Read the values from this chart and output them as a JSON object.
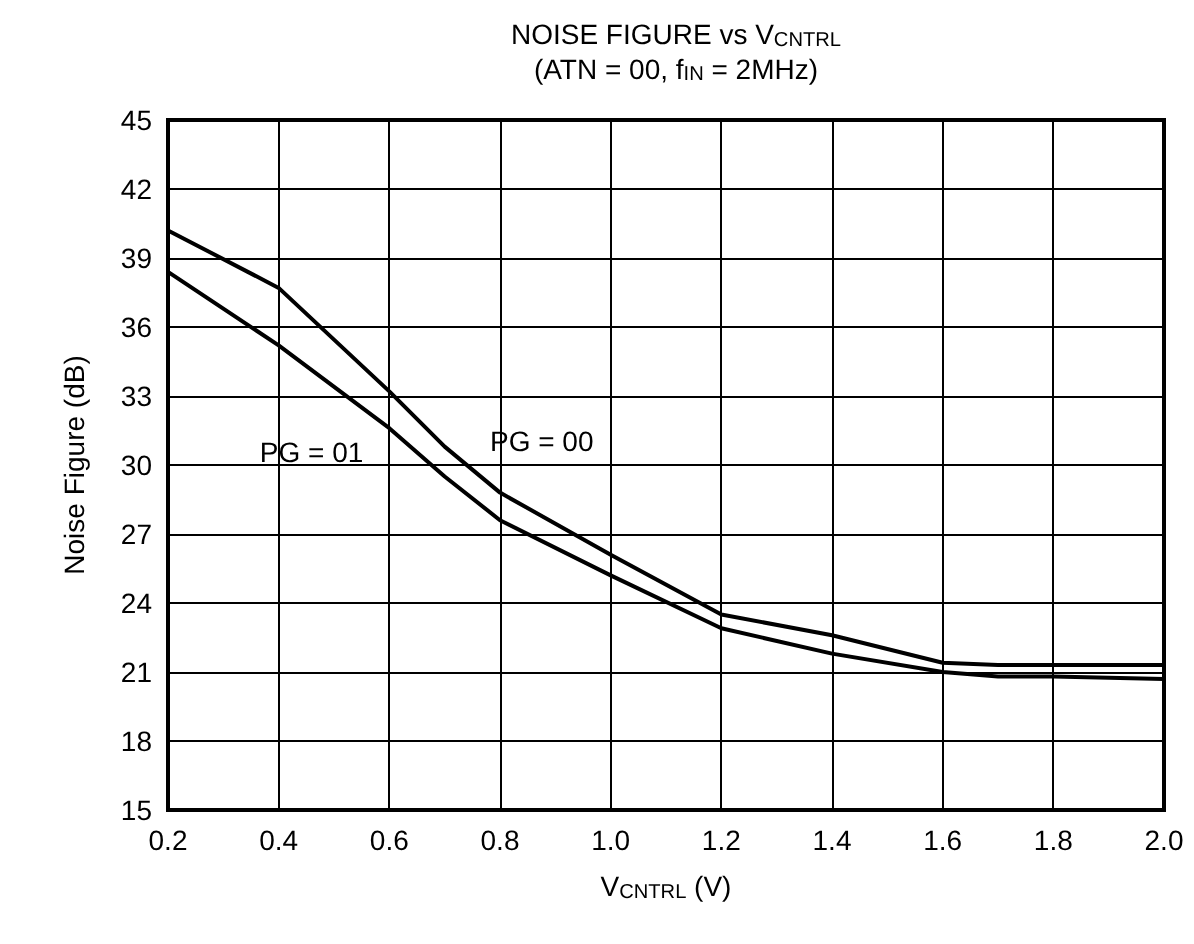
{
  "chart_data": {
    "type": "line",
    "title": "NOISE FIGURE vs V$_{CNTRL}$",
    "subtitle": "(ATN = 00, f$_{IN}$ = 2MHz)",
    "xlabel": "V$_{CNTRL}$ (V)",
    "ylabel": "Noise Figure (dB)",
    "x": [
      0.2,
      0.4,
      0.6,
      0.7,
      0.8,
      1.0,
      1.2,
      1.4,
      1.6,
      1.7,
      1.8,
      2.0
    ],
    "series": [
      {
        "name": "PG = 00",
        "color": "#000000",
        "values": [
          40.2,
          37.7,
          33.2,
          30.8,
          28.8,
          26.1,
          23.5,
          22.6,
          21.4,
          21.3,
          21.3,
          21.3
        ]
      },
      {
        "name": "PG = 01",
        "color": "#000000",
        "values": [
          38.4,
          35.2,
          31.6,
          29.5,
          27.6,
          25.2,
          22.9,
          21.8,
          21.0,
          20.8,
          20.8,
          20.7
        ]
      }
    ],
    "xlim": [
      0.2,
      2.0
    ],
    "xticks": [
      0.2,
      0.4,
      0.6,
      0.8,
      {
        "value": 1,
        "label": "1.0"
      },
      1.2,
      1.4,
      1.6,
      1.8,
      {
        "value": 2,
        "label": "2.0"
      }
    ],
    "ylim": [
      15,
      45
    ],
    "yticks": [
      15,
      18,
      21,
      24,
      27,
      30,
      33,
      36,
      39,
      42,
      45
    ],
    "grid": true,
    "marker": "none",
    "line_style": "solid"
  }
}
